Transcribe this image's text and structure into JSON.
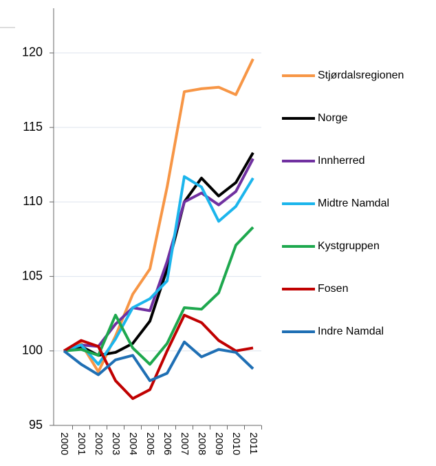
{
  "chart_data": {
    "type": "line",
    "categories": [
      "2000",
      "2001",
      "2002",
      "2003",
      "2004",
      "2005",
      "2006",
      "2007",
      "2008",
      "2009",
      "2010",
      "2011"
    ],
    "ylim": [
      95,
      123
    ],
    "yticks": [
      95,
      100,
      105,
      110,
      115,
      120
    ],
    "grid": true,
    "legend": "right",
    "series": [
      {
        "name": "Stjørdalsregionen",
        "color": "#f79646",
        "values": [
          100,
          100.5,
          98.6,
          101,
          103.8,
          105.5,
          111,
          117.4,
          117.6,
          117.7,
          117.2,
          119.6
        ]
      },
      {
        "name": "Norge",
        "color": "#000000",
        "values": [
          100,
          100.3,
          99.7,
          99.9,
          100.5,
          102,
          105.5,
          110,
          111.6,
          110.4,
          111.3,
          113.3
        ]
      },
      {
        "name": "Innherred",
        "color": "#7030a0",
        "values": [
          100,
          100.4,
          100.3,
          101.8,
          102.9,
          102.7,
          106,
          110,
          110.6,
          109.8,
          110.7,
          112.9
        ]
      },
      {
        "name": "Midtre Namdal",
        "color": "#1cb5ec",
        "values": [
          100,
          100.4,
          99.1,
          100.8,
          102.9,
          103.5,
          104.7,
          111.7,
          111,
          108.7,
          109.7,
          111.6
        ]
      },
      {
        "name": "Kystgruppen",
        "color": "#1ea84e",
        "values": [
          100,
          100.1,
          99.7,
          102.4,
          100.2,
          99.1,
          100.5,
          102.9,
          102.8,
          103.9,
          107.1,
          108.3
        ]
      },
      {
        "name": "Fosen",
        "color": "#c00000",
        "values": [
          100,
          100.7,
          100.3,
          98,
          96.8,
          97.4,
          100,
          102.4,
          101.9,
          100.7,
          100,
          100.2
        ]
      },
      {
        "name": "Indre Namdal",
        "color": "#1f6fb4",
        "values": [
          100,
          99.1,
          98.4,
          99.4,
          99.7,
          98,
          98.5,
          100.6,
          99.6,
          100.1,
          99.9,
          98.8
        ]
      }
    ]
  }
}
